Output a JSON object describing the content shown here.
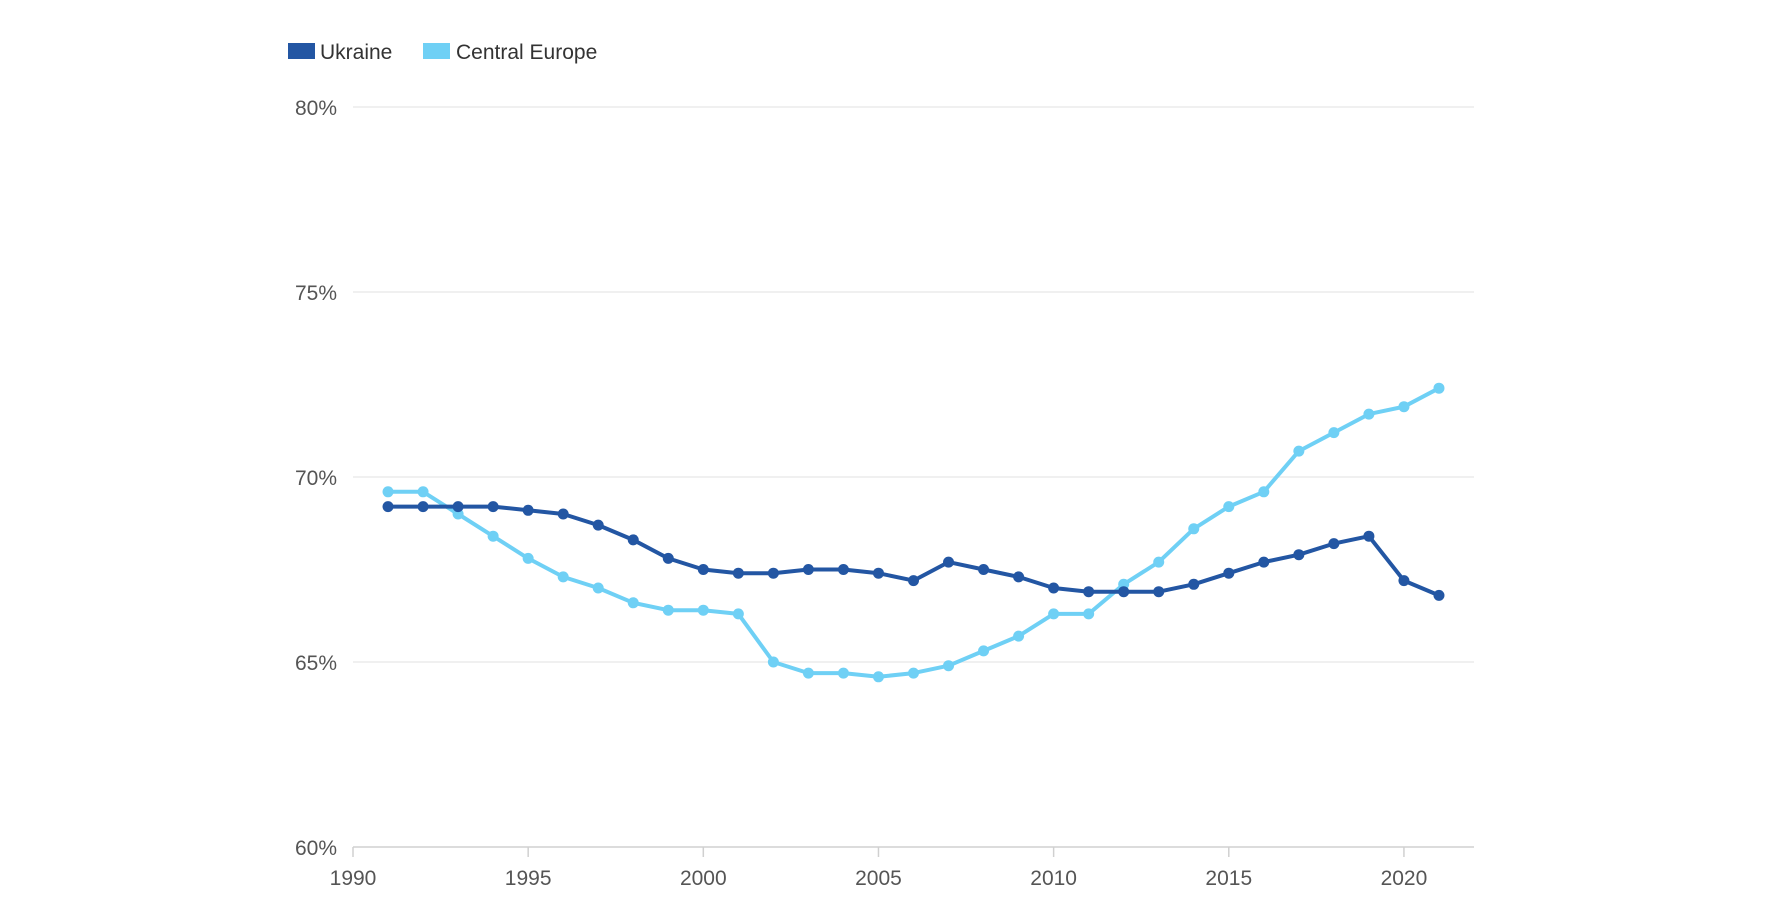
{
  "chart_data": {
    "type": "line",
    "title": "",
    "xlabel": "",
    "ylabel": "",
    "x": [
      1991,
      1992,
      1993,
      1994,
      1995,
      1996,
      1997,
      1998,
      1999,
      2000,
      2001,
      2002,
      2003,
      2004,
      2005,
      2006,
      2007,
      2008,
      2009,
      2010,
      2011,
      2012,
      2013,
      2014,
      2015,
      2016,
      2017,
      2018,
      2019,
      2020,
      2021
    ],
    "xlim": [
      1990,
      2022
    ],
    "ylim": [
      60,
      80
    ],
    "x_ticks": [
      1990,
      1995,
      2000,
      2005,
      2010,
      2015,
      2020
    ],
    "x_tick_labels": [
      "1990",
      "1995",
      "2000",
      "2005",
      "2010",
      "2015",
      "2020"
    ],
    "y_ticks": [
      60,
      65,
      70,
      75,
      80
    ],
    "y_tick_labels": [
      "60%",
      "65%",
      "70%",
      "75%",
      "80%"
    ],
    "grid": true,
    "legend_position": "top-left",
    "series": [
      {
        "name": "Ukraine",
        "color": "#2356a3",
        "values": [
          69.2,
          69.2,
          69.2,
          69.2,
          69.1,
          69.0,
          68.7,
          68.3,
          67.8,
          67.5,
          67.4,
          67.4,
          67.5,
          67.5,
          67.4,
          67.2,
          67.7,
          67.5,
          67.3,
          67.0,
          66.9,
          66.9,
          66.9,
          67.1,
          67.4,
          67.7,
          67.9,
          68.2,
          68.4,
          67.2,
          66.8
        ]
      },
      {
        "name": "Central Europe",
        "color": "#6fd0f5",
        "values": [
          69.6,
          69.6,
          69.0,
          68.4,
          67.8,
          67.3,
          67.0,
          66.6,
          66.4,
          66.4,
          66.3,
          65.0,
          64.7,
          64.7,
          64.6,
          64.7,
          64.9,
          65.3,
          65.7,
          66.3,
          66.3,
          67.1,
          67.7,
          68.6,
          69.2,
          69.6,
          70.7,
          71.2,
          71.7,
          71.9,
          72.4
        ]
      }
    ]
  }
}
